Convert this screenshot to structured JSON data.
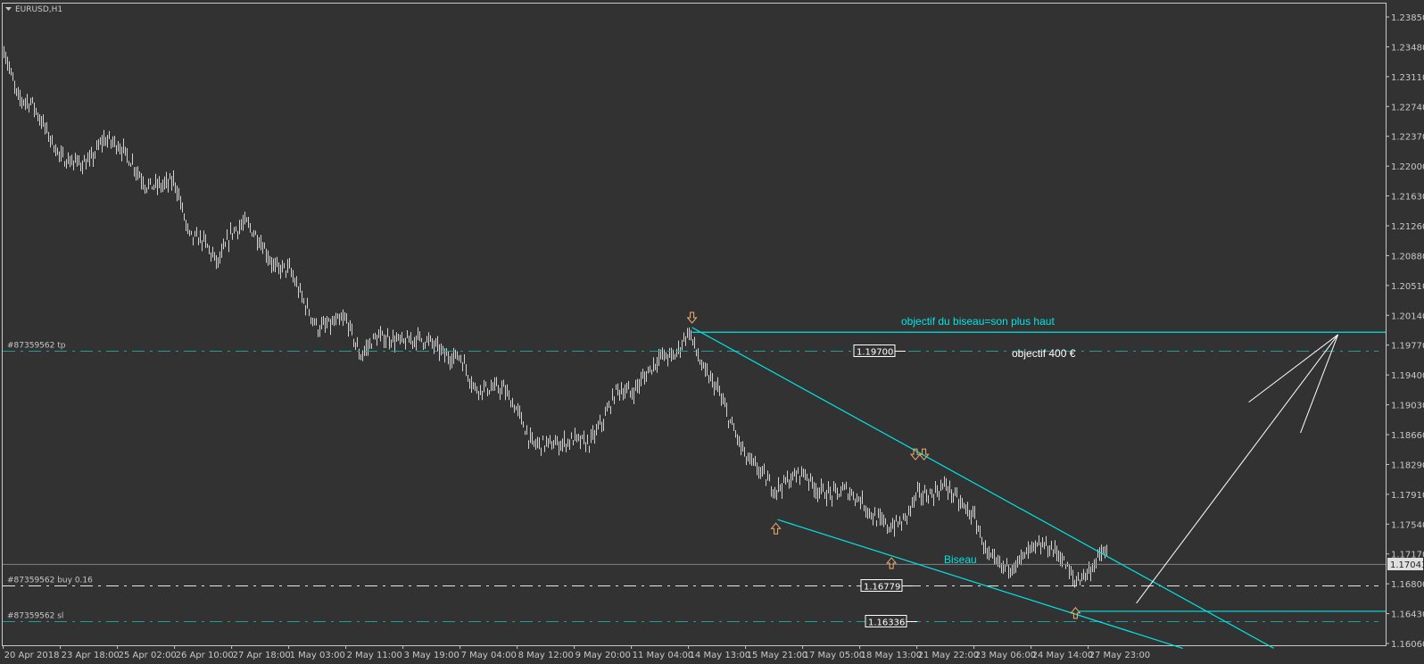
{
  "window": {
    "title": "EURUSD,H1",
    "menu_icon": "triangle-down-icon"
  },
  "colors": {
    "background": "#323232",
    "bars": "#d2d2d2",
    "axis": "#c8c8c8",
    "trendlines": "#00e5e5",
    "order_levels_tp_sl": "#1f9d9d",
    "order_level_buy": "#e6e6e6",
    "current_price_line": "#808080",
    "arrows": "#f0b070"
  },
  "chart_data": {
    "type": "ohlc-bars",
    "symbol": "EURUSD",
    "timeframe": "H1",
    "y_ticks": [
      "1.23850",
      "1.23480",
      "1.23110",
      "1.22740",
      "1.22370",
      "1.22000",
      "1.21630",
      "1.21260",
      "1.20880",
      "1.20510",
      "1.20140",
      "1.19770",
      "1.19400",
      "1.19030",
      "1.18660",
      "1.18290",
      "1.17910",
      "1.17540",
      "1.17170",
      "1.16800",
      "1.16430",
      "1.16060"
    ],
    "ylim": [
      1.1606,
      1.2385
    ],
    "x_ticks": [
      {
        "label": "20 Apr 2018",
        "t": "2018-04-20T00:00"
      },
      {
        "label": "23 Apr 18:00",
        "t": "2018-04-23T18:00"
      },
      {
        "label": "25 Apr 02:00",
        "t": "2018-04-25T02:00"
      },
      {
        "label": "26 Apr 10:00",
        "t": "2018-04-26T10:00"
      },
      {
        "label": "27 Apr 18:00",
        "t": "2018-04-27T18:00"
      },
      {
        "label": "1 May 03:00",
        "t": "2018-05-01T03:00"
      },
      {
        "label": "2 May 11:00",
        "t": "2018-05-02T11:00"
      },
      {
        "label": "3 May 19:00",
        "t": "2018-05-03T19:00"
      },
      {
        "label": "7 May 04:00",
        "t": "2018-05-07T04:00"
      },
      {
        "label": "8 May 12:00",
        "t": "2018-05-08T12:00"
      },
      {
        "label": "9 May 20:00",
        "t": "2018-05-09T20:00"
      },
      {
        "label": "11 May 04:00",
        "t": "2018-05-11T04:00"
      },
      {
        "label": "14 May 13:00",
        "t": "2018-05-14T13:00"
      },
      {
        "label": "15 May 21:00",
        "t": "2018-05-15T21:00"
      },
      {
        "label": "17 May 05:00",
        "t": "2018-05-17T05:00"
      },
      {
        "label": "18 May 13:00",
        "t": "2018-05-18T13:00"
      },
      {
        "label": "21 May 22:00",
        "t": "2018-05-21T22:00"
      },
      {
        "label": "23 May 06:00",
        "t": "2018-05-23T06:00"
      },
      {
        "label": "24 May 14:00",
        "t": "2018-05-24T14:00"
      },
      {
        "label": "27 May 23:00",
        "t": "2018-05-27T23:00"
      }
    ],
    "price_path": [
      [
        "2018-04-20T00:00",
        1.2347
      ],
      [
        "2018-04-20T22:00",
        1.2284
      ],
      [
        "2018-04-21T21:00",
        1.2278
      ],
      [
        "2018-04-22T19:00",
        1.2244
      ],
      [
        "2018-04-23T18:00",
        1.221
      ],
      [
        "2018-04-24T02:00",
        1.2204
      ],
      [
        "2018-04-24T10:00",
        1.2204
      ],
      [
        "2018-04-24T18:00",
        1.2233
      ],
      [
        "2018-04-25T02:00",
        1.2227
      ],
      [
        "2018-04-25T10:00",
        1.2204
      ],
      [
        "2018-04-25T18:00",
        1.2175
      ],
      [
        "2018-04-26T02:00",
        1.2175
      ],
      [
        "2018-04-26T10:00",
        1.2181
      ],
      [
        "2018-04-26T18:00",
        1.2112
      ],
      [
        "2018-04-27T02:00",
        1.2107
      ],
      [
        "2018-04-27T10:00",
        1.2078
      ],
      [
        "2018-04-27T18:00",
        1.2118
      ],
      [
        "2018-04-28T14:00",
        1.2129
      ],
      [
        "2018-04-29T10:00",
        1.2107
      ],
      [
        "2018-04-30T07:00",
        1.2072
      ],
      [
        "2018-05-01T03:00",
        1.2072
      ],
      [
        "2018-05-01T11:00",
        1.2032
      ],
      [
        "2018-05-01T19:00",
        1.1998
      ],
      [
        "2018-05-02T03:00",
        1.2003
      ],
      [
        "2018-05-02T11:00",
        1.2009
      ],
      [
        "2018-05-02T19:00",
        1.1963
      ],
      [
        "2018-05-03T03:00",
        1.1986
      ],
      [
        "2018-05-03T11:00",
        1.1986
      ],
      [
        "2018-05-03T19:00",
        1.198
      ],
      [
        "2018-05-04T15:00",
        1.1986
      ],
      [
        "2018-05-05T11:00",
        1.198
      ],
      [
        "2018-05-06T08:00",
        1.1963
      ],
      [
        "2018-05-07T04:00",
        1.1963
      ],
      [
        "2018-05-07T12:00",
        1.1923
      ],
      [
        "2018-05-07T20:00",
        1.1923
      ],
      [
        "2018-05-08T04:00",
        1.1923
      ],
      [
        "2018-05-08T12:00",
        1.1895
      ],
      [
        "2018-05-08T20:00",
        1.1854
      ],
      [
        "2018-05-09T04:00",
        1.1854
      ],
      [
        "2018-05-09T12:00",
        1.1854
      ],
      [
        "2018-05-09T20:00",
        1.186
      ],
      [
        "2018-05-10T04:00",
        1.1854
      ],
      [
        "2018-05-10T12:00",
        1.1883
      ],
      [
        "2018-05-10T20:00",
        1.1923
      ],
      [
        "2018-05-11T04:00",
        1.1917
      ],
      [
        "2018-05-12T00:00",
        1.194
      ],
      [
        "2018-05-12T20:00",
        1.1963
      ],
      [
        "2018-05-13T17:00",
        1.1963
      ],
      [
        "2018-05-14T13:00",
        1.1995
      ],
      [
        "2018-05-14T21:00",
        1.1946
      ],
      [
        "2018-05-15T05:00",
        1.1923
      ],
      [
        "2018-05-15T13:00",
        1.1877
      ],
      [
        "2018-05-15T21:00",
        1.1837
      ],
      [
        "2018-05-16T05:00",
        1.182
      ],
      [
        "2018-05-16T13:00",
        1.1797
      ],
      [
        "2018-05-16T21:00",
        1.1809
      ],
      [
        "2018-05-17T05:00",
        1.182
      ],
      [
        "2018-05-17T13:00",
        1.1797
      ],
      [
        "2018-05-17T21:00",
        1.1791
      ],
      [
        "2018-05-18T05:00",
        1.1797
      ],
      [
        "2018-05-18T13:00",
        1.1785
      ],
      [
        "2018-05-19T09:00",
        1.1763
      ],
      [
        "2018-05-20T05:00",
        1.1751
      ],
      [
        "2018-05-21T02:00",
        1.1757
      ],
      [
        "2018-05-21T22:00",
        1.1791
      ],
      [
        "2018-05-22T06:00",
        1.1791
      ],
      [
        "2018-05-22T14:00",
        1.1803
      ],
      [
        "2018-05-22T22:00",
        1.178
      ],
      [
        "2018-05-23T06:00",
        1.1763
      ],
      [
        "2018-05-23T14:00",
        1.1712
      ],
      [
        "2018-05-23T22:00",
        1.17
      ],
      [
        "2018-05-24T06:00",
        1.1706
      ],
      [
        "2018-05-24T14:00",
        1.1723
      ],
      [
        "2018-05-25T10:00",
        1.1728
      ],
      [
        "2018-05-26T06:00",
        1.1717
      ],
      [
        "2018-05-27T03:00",
        1.1683
      ],
      [
        "2018-05-27T23:00",
        1.1695
      ],
      [
        "2018-05-28T07:00",
        1.172
      ],
      [
        "2018-05-28T10:00",
        1.1715
      ]
    ],
    "current_price": "1.17043",
    "grid": false
  },
  "orders": [
    {
      "label": "#87359562 tp",
      "price": 1.197,
      "price_label": "1.19700",
      "kind": "tp"
    },
    {
      "label": "#87359562 buy 0.16",
      "price": 1.16779,
      "price_label": "1.16779",
      "kind": "buy"
    },
    {
      "label": "#87359562 sl",
      "price": 1.16336,
      "price_label": "1.16336",
      "kind": "sl"
    }
  ],
  "drawings": {
    "trendlines": [
      {
        "name": "wedge-top-horizontal-line",
        "from": [
          "2018-05-14T15:00",
          1.1993
        ],
        "to_right_edge": true
      },
      {
        "name": "wedge-upper-line",
        "from": [
          "2018-05-14T15:00",
          1.1999
        ],
        "to": [
          "2018-06-01T07:00",
          1.16
        ]
      },
      {
        "name": "wedge-lower-line",
        "from": [
          "2018-05-16T15:00",
          1.176
        ],
        "to": [
          "2018-05-30T04:00",
          1.16
        ]
      },
      {
        "name": "wedge-low-horizontal-line",
        "from": [
          "2018-05-27T09:00",
          1.1646
        ],
        "to_right_edge": true
      }
    ],
    "target_arrow": {
      "shaft": [
        [
          "2018-05-29T02:00",
          1.1656
        ],
        [
          "2018-06-02T19:00",
          1.199
        ]
      ],
      "head_left": [
        [
          "2018-05-31T17:00",
          1.1906
        ],
        [
          "2018-06-02T19:00",
          1.199
        ]
      ],
      "head_right": [
        [
          "2018-06-01T22:00",
          1.1868
        ],
        [
          "2018-06-02T19:00",
          1.199
        ]
      ]
    },
    "arrows": [
      {
        "dir": "down",
        "t": "2018-05-14T15:00",
        "p": 1.2
      },
      {
        "dir": "down",
        "t": "2018-05-21T20:00",
        "p": 1.183
      },
      {
        "dir": "down",
        "t": "2018-05-22T02:00",
        "p": 1.183
      },
      {
        "dir": "up",
        "t": "2018-05-16T14:00",
        "p": 1.176
      },
      {
        "dir": "up",
        "t": "2018-05-20T10:00",
        "p": 1.1717
      },
      {
        "dir": "up",
        "t": "2018-05-27T05:00",
        "p": 1.1655
      }
    ],
    "texts": {
      "objective_caption": "objectif du biseau=son plus haut",
      "objective_amount": "objectif 400 €",
      "wedge_label": "Biseau"
    }
  }
}
